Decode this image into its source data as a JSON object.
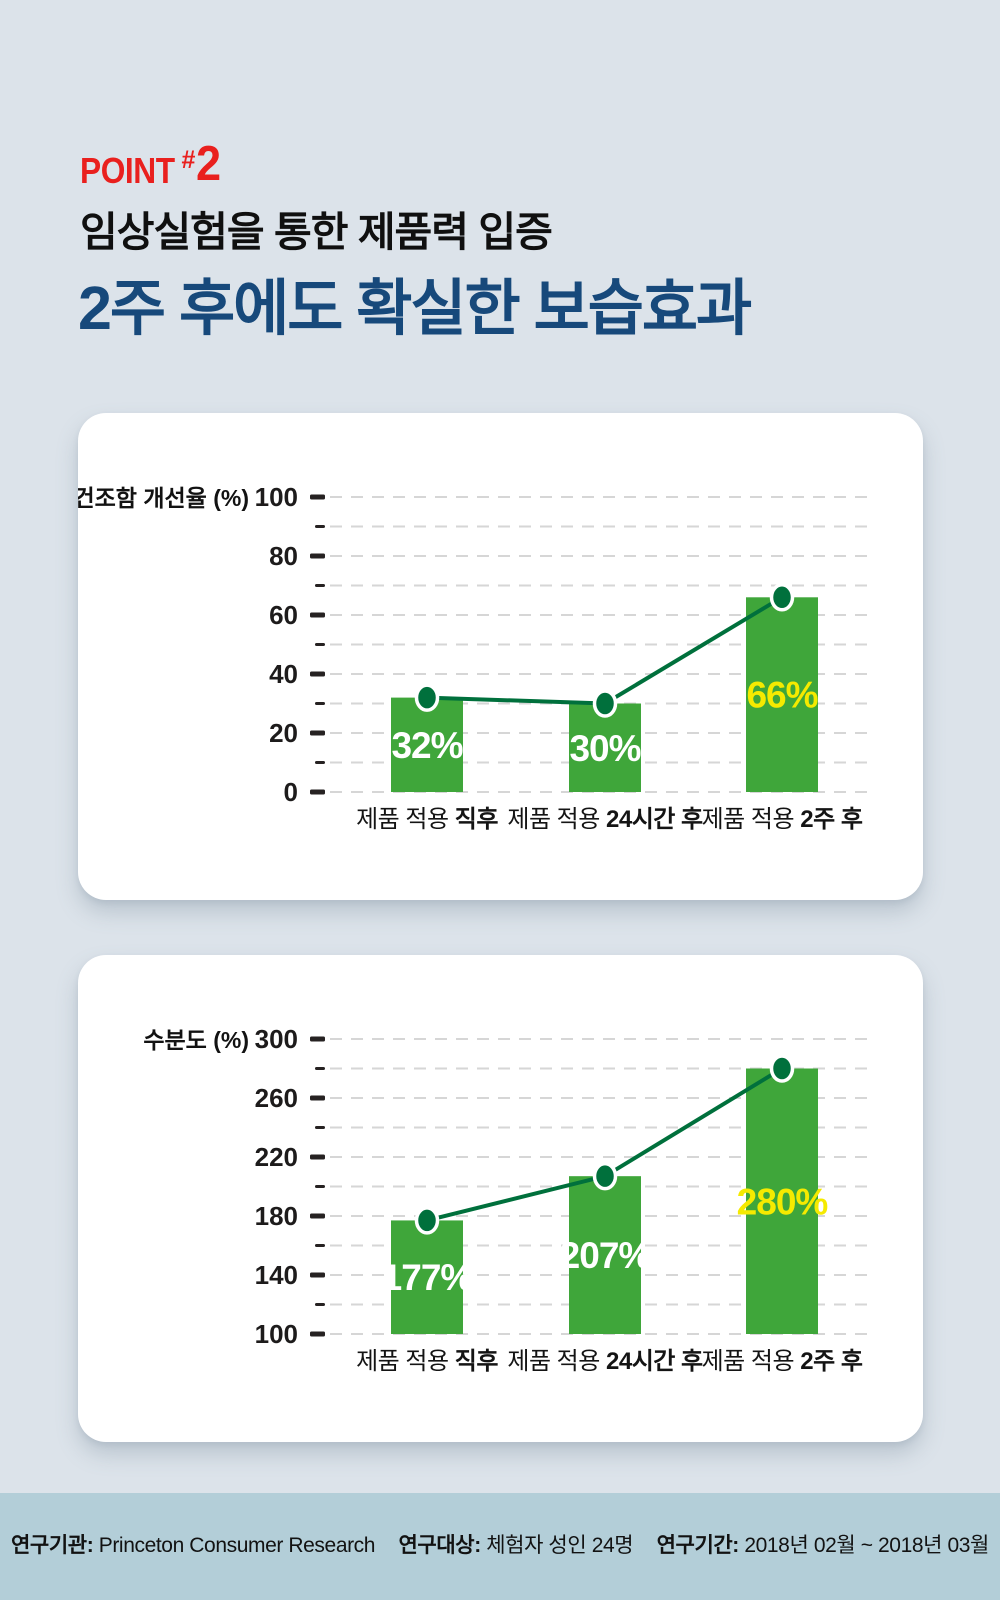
{
  "page": {
    "background": "#dce3ea"
  },
  "header": {
    "point_word": "POINT",
    "point_hash": "#",
    "point_number": "2",
    "subtitle": "임상실험을 통한 제품력 입증",
    "title": "2주 후에도 확실한 보습효과",
    "accent_red": "#e9201e",
    "title_navy": "#17497b"
  },
  "chart_data": [
    {
      "type": "bar",
      "axis_label": "건조함 개선율 (%)",
      "categories": [
        {
          "prefix": "제품 적용 ",
          "emphasis": "직후"
        },
        {
          "prefix": "제품 적용 ",
          "emphasis": "24시간 후"
        },
        {
          "prefix": "제품 적용 ",
          "emphasis": "2주 후"
        }
      ],
      "values": [
        32,
        30,
        66
      ],
      "value_labels": [
        "32%",
        "30%",
        "66%"
      ],
      "value_label_colors": [
        "#ffffff",
        "#ffffff",
        "#f5ea00"
      ],
      "axis": {
        "min": 0,
        "max": 100,
        "major_step": 20,
        "minor_step": 10,
        "tick_labels": [
          "0",
          "20",
          "40",
          "60",
          "80",
          "100"
        ]
      },
      "grid": true,
      "legend": "none",
      "colors": {
        "bar": "#3fa63a",
        "line": "#00703c",
        "grid": "#d6d6d6",
        "tick": "#262222",
        "text": "#1d1b1b"
      }
    },
    {
      "type": "bar",
      "axis_label": "수분도 (%)",
      "categories": [
        {
          "prefix": "제품 적용 ",
          "emphasis": "직후"
        },
        {
          "prefix": "제품 적용 ",
          "emphasis": "24시간 후"
        },
        {
          "prefix": "제품 적용 ",
          "emphasis": "2주 후"
        }
      ],
      "values": [
        177,
        207,
        280
      ],
      "value_labels": [
        "177%",
        "207%",
        "280%"
      ],
      "value_label_colors": [
        "#ffffff",
        "#ffffff",
        "#f5ea00"
      ],
      "axis": {
        "min": 100,
        "max": 300,
        "major_step": 40,
        "minor_step": 20,
        "tick_labels": [
          "100",
          "140",
          "180",
          "220",
          "260",
          "300"
        ]
      },
      "grid": true,
      "legend": "none",
      "colors": {
        "bar": "#3fa63a",
        "line": "#00703c",
        "grid": "#d6d6d6",
        "tick": "#262222",
        "text": "#1d1b1b"
      }
    }
  ],
  "footer": {
    "background": "#b3ced8",
    "items": [
      {
        "label": "연구기관:",
        "value": "Princeton Consumer Research"
      },
      {
        "label": "연구대상:",
        "value": "체험자 성인 24명"
      },
      {
        "label": "연구기간:",
        "value": "2018년 02월 ~ 2018년 03월"
      }
    ]
  }
}
